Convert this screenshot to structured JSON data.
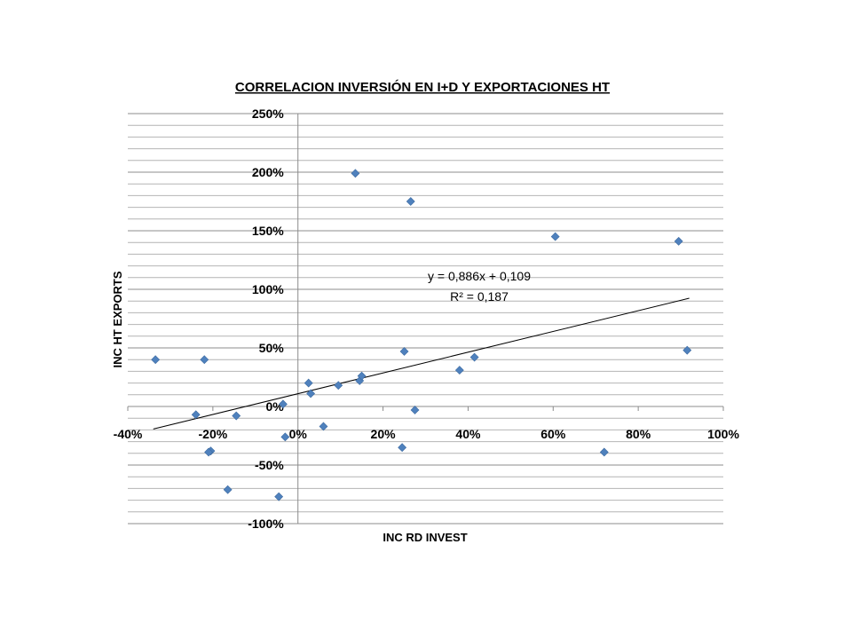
{
  "chart_data": {
    "type": "scatter",
    "title": "CORRELACION INVERSIÓN EN I+D Y EXPORTACIONES HT",
    "xlabel": "INC RD INVEST",
    "ylabel": "INC HT EXPORTS",
    "xlim": [
      -40,
      100
    ],
    "ylim": [
      -100,
      250
    ],
    "x_ticks": [
      -40,
      -20,
      0,
      20,
      40,
      60,
      80,
      100
    ],
    "y_ticks": [
      -100,
      -50,
      0,
      50,
      100,
      150,
      200,
      250
    ],
    "x_tick_labels": [
      "-40%",
      "-20%",
      "0%",
      "20%",
      "40%",
      "60%",
      "80%",
      "100%"
    ],
    "y_tick_labels": [
      "-100%",
      "-50%",
      "0%",
      "50%",
      "100%",
      "150%",
      "200%",
      "250%"
    ],
    "grid_minor_step": 10,
    "grid": true,
    "marker_color": "#4f81bd",
    "points": [
      {
        "x": -33.5,
        "y": 40
      },
      {
        "x": -22,
        "y": 40
      },
      {
        "x": -24,
        "y": -7
      },
      {
        "x": -14.5,
        "y": -8
      },
      {
        "x": -20.5,
        "y": -38
      },
      {
        "x": -21,
        "y": -39
      },
      {
        "x": -16.5,
        "y": -71
      },
      {
        "x": -4.5,
        "y": -77
      },
      {
        "x": -3.5,
        "y": 2
      },
      {
        "x": -3,
        "y": -26
      },
      {
        "x": 2.5,
        "y": 20
      },
      {
        "x": 3,
        "y": 11
      },
      {
        "x": 6,
        "y": -17
      },
      {
        "x": 9.5,
        "y": 18
      },
      {
        "x": 13.5,
        "y": 199
      },
      {
        "x": 14.5,
        "y": 22
      },
      {
        "x": 15,
        "y": 26
      },
      {
        "x": 24.5,
        "y": -35
      },
      {
        "x": 25,
        "y": 47
      },
      {
        "x": 26.5,
        "y": 175
      },
      {
        "x": 27.5,
        "y": -3
      },
      {
        "x": 38,
        "y": 31
      },
      {
        "x": 41.5,
        "y": 42
      },
      {
        "x": 60.5,
        "y": 145
      },
      {
        "x": 72,
        "y": -39
      },
      {
        "x": 89.5,
        "y": 141
      },
      {
        "x": 91.5,
        "y": 48
      }
    ],
    "trendline": {
      "slope": 0.886,
      "intercept": 0.109,
      "x_range": [
        -34,
        92
      ],
      "equation": "y = 0,886x + 0,109",
      "r_squared": "R² = 0,187"
    }
  }
}
